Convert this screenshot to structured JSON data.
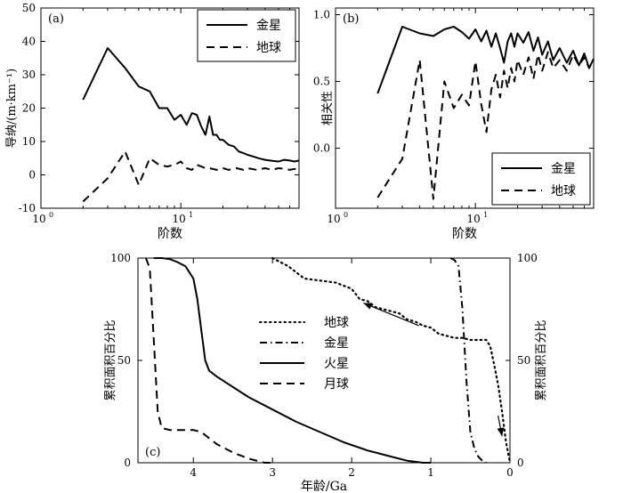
{
  "chart_data": [
    {
      "panel": "(a)",
      "type": "line",
      "xscale": "log",
      "xlim": [
        1,
        70
      ],
      "ylim": [
        -10,
        50
      ],
      "xlabel": "阶数",
      "ylabel": "导纳/(m·km⁻¹)",
      "xticks": [
        {
          "v": 1,
          "base": "10",
          "exp": "0"
        },
        {
          "v": 10,
          "base": "10",
          "exp": "1"
        }
      ],
      "yticks": [
        -10,
        0,
        10,
        20,
        30,
        40,
        50
      ],
      "legend": {
        "position": "top-right",
        "entries": [
          "金星",
          "地球"
        ]
      },
      "series": [
        {
          "name": "金星",
          "style": "solid",
          "x": [
            2,
            3,
            4,
            5,
            6,
            7,
            8,
            9,
            10,
            11,
            12,
            13,
            14,
            15,
            16,
            17,
            18,
            19,
            20,
            22,
            24,
            26,
            28,
            30,
            33,
            36,
            40,
            45,
            50,
            55,
            60,
            65,
            70
          ],
          "y": [
            22.5,
            38,
            32,
            26.5,
            25,
            20,
            20,
            16.5,
            18,
            15,
            18.5,
            18,
            14.5,
            12,
            17.5,
            12,
            12,
            10.5,
            10.5,
            9,
            8.5,
            7,
            6.5,
            6,
            5.5,
            5,
            4.5,
            4.2,
            4,
            4.5,
            4.3,
            4,
            4.3
          ]
        },
        {
          "name": "地球",
          "style": "dashed",
          "x": [
            2,
            3,
            4,
            5,
            6,
            7,
            8,
            9,
            10,
            11,
            12,
            13,
            14,
            15,
            16,
            18,
            20,
            22,
            25,
            28,
            30,
            35,
            40,
            45,
            50,
            55,
            60,
            65,
            70
          ],
          "y": [
            -8,
            -1,
            7,
            -3,
            5,
            3,
            2.5,
            3,
            4,
            2,
            1.5,
            3,
            2.5,
            2,
            2,
            1.5,
            2,
            1.5,
            2,
            1.5,
            2,
            1.5,
            2,
            1.5,
            2,
            1.8,
            1.5,
            1.8,
            1.5
          ]
        }
      ]
    },
    {
      "panel": "(b)",
      "type": "line",
      "xscale": "log",
      "xlim": [
        1,
        70
      ],
      "ylim": [
        -0.45,
        1.05
      ],
      "xlabel": "阶数",
      "ylabel": "相关性",
      "xticks": [
        {
          "v": 1,
          "base": "10",
          "exp": "0"
        },
        {
          "v": 10,
          "base": "10",
          "exp": "1"
        }
      ],
      "yticks": [
        0.0,
        0.5,
        1.0
      ],
      "ytick_labels": [
        "0.0",
        "0.5",
        "1.0"
      ],
      "legend": {
        "position": "bottom-right",
        "entries": [
          "金星",
          "地球"
        ]
      },
      "series": [
        {
          "name": "金星",
          "style": "solid",
          "x": [
            2,
            3,
            4,
            5,
            6,
            7,
            8,
            9,
            10,
            11,
            12,
            13,
            14,
            15,
            16,
            17,
            18,
            19,
            20,
            22,
            24,
            26,
            28,
            30,
            33,
            36,
            40,
            45,
            50,
            55,
            60,
            65,
            70
          ],
          "y": [
            0.41,
            0.91,
            0.86,
            0.84,
            0.89,
            0.91,
            0.87,
            0.82,
            0.89,
            0.8,
            0.88,
            0.76,
            0.86,
            0.75,
            0.64,
            0.8,
            0.86,
            0.76,
            0.86,
            0.79,
            0.87,
            0.73,
            0.83,
            0.7,
            0.8,
            0.66,
            0.75,
            0.64,
            0.73,
            0.62,
            0.71,
            0.6,
            0.67
          ]
        },
        {
          "name": "地球",
          "style": "dashed",
          "x": [
            2,
            3,
            4,
            5,
            6,
            7,
            8,
            9,
            10,
            11,
            12,
            13,
            14,
            15,
            16,
            17,
            18,
            19,
            20,
            22,
            24,
            26,
            28,
            30,
            33,
            36,
            40,
            45,
            50,
            55,
            60,
            65,
            70
          ],
          "y": [
            -0.37,
            -0.08,
            0.66,
            -0.38,
            0.5,
            0.3,
            0.4,
            0.32,
            0.65,
            0.33,
            0.12,
            0.44,
            0.55,
            0.38,
            0.58,
            0.45,
            0.6,
            0.5,
            0.66,
            0.55,
            0.68,
            0.52,
            0.7,
            0.58,
            0.72,
            0.6,
            0.66,
            0.58,
            0.7,
            0.62,
            0.68,
            0.6,
            0.66
          ]
        }
      ]
    },
    {
      "panel": "(c)",
      "type": "line",
      "xlim": [
        4.7,
        0
      ],
      "ylim": [
        0,
        100
      ],
      "xlabel": "年龄/Ga",
      "ylabel": "累积面积百分比",
      "ylabel_right": "累积面积百分比",
      "xticks": [
        4,
        3,
        2,
        1,
        0
      ],
      "yticks": [
        0,
        50,
        100
      ],
      "legend": {
        "position": "center",
        "entries": [
          "地球",
          "金星",
          "火星",
          "月球"
        ]
      },
      "series": [
        {
          "name": "地球",
          "style": "dotted",
          "x": [
            3.0,
            2.8,
            2.6,
            2.4,
            2.2,
            2.0,
            1.9,
            1.8,
            1.7,
            1.6,
            1.5,
            1.4,
            1.3,
            1.2,
            1.1,
            1.0,
            0.9,
            0.8,
            0.7,
            0.6,
            0.5,
            0.4,
            0.3,
            0.25,
            0.2,
            0.15,
            0.1,
            0.05,
            0.0
          ],
          "y": [
            100,
            96,
            90,
            89,
            88,
            85,
            80,
            79,
            76,
            75,
            74,
            73,
            70,
            69,
            67,
            66,
            63,
            62,
            61,
            61,
            60,
            60,
            60,
            57,
            48,
            38,
            25,
            10,
            0
          ]
        },
        {
          "name": "金星",
          "style": "dashdot",
          "x": [
            0.75,
            0.7,
            0.65,
            0.6,
            0.55,
            0.5,
            0.45,
            0.4,
            0.35,
            0.3
          ],
          "y": [
            100,
            99,
            96,
            75,
            40,
            15,
            7,
            3,
            1,
            0
          ]
        },
        {
          "name": "火星",
          "style": "solid",
          "x": [
            4.5,
            4.4,
            4.3,
            4.2,
            4.1,
            4.0,
            3.95,
            3.9,
            3.85,
            3.8,
            3.7,
            3.5,
            3.3,
            3.0,
            2.7,
            2.4,
            2.1,
            1.8,
            1.5,
            1.3,
            1.1,
            1.0
          ],
          "y": [
            100,
            100,
            99.5,
            98,
            96,
            90,
            80,
            65,
            50,
            45,
            42,
            37,
            32,
            26,
            20,
            15,
            10,
            6,
            3,
            1,
            0,
            0
          ]
        },
        {
          "name": "月球",
          "style": "dashed",
          "x": [
            4.6,
            4.55,
            4.5,
            4.45,
            4.4,
            4.3,
            4.2,
            4.1,
            4.0,
            3.9,
            3.8,
            3.7,
            3.5,
            3.3,
            3.1,
            3.0
          ],
          "y": [
            100,
            95,
            60,
            25,
            17,
            16,
            16,
            16,
            16,
            15,
            12,
            9,
            5,
            2,
            0,
            0
          ]
        }
      ],
      "annotations": [
        {
          "type": "arrow",
          "from": [
            1.15,
            67
          ],
          "to": [
            1.85,
            78
          ]
        },
        {
          "type": "arrow",
          "from": [
            0.15,
            23
          ],
          "to": [
            0.1,
            13
          ]
        }
      ]
    }
  ]
}
